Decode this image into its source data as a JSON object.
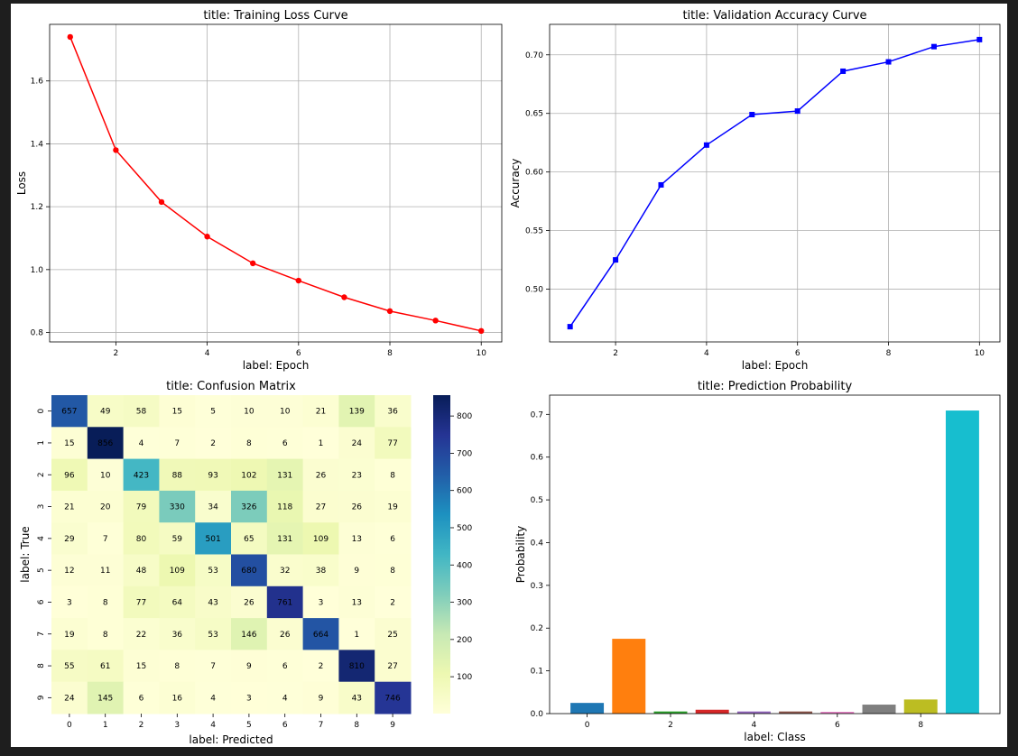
{
  "chart_data": [
    {
      "id": "loss",
      "type": "line",
      "title": "title: Training Loss Curve",
      "xlabel": "label: Epoch",
      "ylabel": "Loss",
      "x": [
        1,
        2,
        3,
        4,
        5,
        6,
        7,
        8,
        9,
        10
      ],
      "series": [
        {
          "values": [
            1.74,
            1.38,
            1.215,
            1.105,
            1.02,
            0.965,
            0.912,
            0.868,
            0.838,
            0.805
          ],
          "color": "#ff0000",
          "marker": "circle"
        }
      ],
      "xlim": [
        0.55,
        10.45
      ],
      "ylim": [
        0.77,
        1.78
      ],
      "xticks": [
        2,
        4,
        6,
        8,
        10
      ],
      "yticks": [
        0.8,
        1.0,
        1.2,
        1.4,
        1.6
      ],
      "ytick_labels": [
        "0.8",
        "1.0",
        "1.2",
        "1.4",
        "1.6"
      ],
      "grid": true
    },
    {
      "id": "acc",
      "type": "line",
      "title": "title: Validation Accuracy Curve",
      "xlabel": "label: Epoch",
      "ylabel": "Accuracy",
      "x": [
        1,
        2,
        3,
        4,
        5,
        6,
        7,
        8,
        9,
        10
      ],
      "series": [
        {
          "values": [
            0.468,
            0.525,
            0.589,
            0.623,
            0.649,
            0.652,
            0.686,
            0.694,
            0.707,
            0.713
          ],
          "color": "#0000ff",
          "marker": "square"
        }
      ],
      "xlim": [
        0.55,
        10.45
      ],
      "ylim": [
        0.455,
        0.726
      ],
      "xticks": [
        2,
        4,
        6,
        8,
        10
      ],
      "yticks": [
        0.5,
        0.55,
        0.6,
        0.65,
        0.7
      ],
      "ytick_labels": [
        "0.50",
        "0.55",
        "0.60",
        "0.65",
        "0.70"
      ],
      "grid": true
    },
    {
      "id": "cm",
      "type": "heatmap",
      "title": "title: Confusion Matrix",
      "xlabel": "label: Predicted",
      "ylabel": "label: True",
      "x_labels": [
        "0",
        "1",
        "2",
        "3",
        "4",
        "5",
        "6",
        "7",
        "8",
        "9"
      ],
      "y_labels": [
        "0",
        "1",
        "2",
        "3",
        "4",
        "5",
        "6",
        "7",
        "8",
        "9"
      ],
      "values": [
        [
          657,
          49,
          58,
          15,
          5,
          10,
          10,
          21,
          139,
          36
        ],
        [
          15,
          856,
          4,
          7,
          2,
          8,
          6,
          1,
          24,
          77
        ],
        [
          96,
          10,
          423,
          88,
          93,
          102,
          131,
          26,
          23,
          8
        ],
        [
          21,
          20,
          79,
          330,
          34,
          326,
          118,
          27,
          26,
          19
        ],
        [
          29,
          7,
          80,
          59,
          501,
          65,
          131,
          109,
          13,
          6
        ],
        [
          12,
          11,
          48,
          109,
          53,
          680,
          32,
          38,
          9,
          8
        ],
        [
          3,
          8,
          77,
          64,
          43,
          26,
          761,
          3,
          13,
          2
        ],
        [
          19,
          8,
          22,
          36,
          53,
          146,
          26,
          664,
          1,
          25
        ],
        [
          55,
          61,
          15,
          8,
          7,
          9,
          6,
          2,
          810,
          27
        ],
        [
          24,
          145,
          6,
          16,
          4,
          3,
          4,
          9,
          43,
          746
        ]
      ],
      "colormap": "YlGnBu",
      "vmin": 1,
      "vmax": 856,
      "colorbar_ticks": [
        100,
        200,
        300,
        400,
        500,
        600,
        700,
        800
      ]
    },
    {
      "id": "prob",
      "type": "bar",
      "title": "title: Prediction Probability",
      "xlabel": "label: Class",
      "ylabel": "Probability",
      "categories": [
        0,
        1,
        2,
        3,
        4,
        5,
        6,
        7,
        8,
        9
      ],
      "values": [
        0.025,
        0.175,
        0.005,
        0.009,
        0.005,
        0.005,
        0.004,
        0.021,
        0.033,
        0.709
      ],
      "colors": [
        "#1f77b4",
        "#ff7f0e",
        "#2ca02c",
        "#d62728",
        "#9467bd",
        "#8c564b",
        "#e377c2",
        "#7f7f7f",
        "#bcbd22",
        "#17becf"
      ],
      "xlim": [
        -0.9,
        9.9
      ],
      "ylim": [
        0,
        0.745
      ],
      "xticks": [
        0,
        2,
        4,
        6,
        8
      ],
      "yticks": [
        0.0,
        0.1,
        0.2,
        0.3,
        0.4,
        0.5,
        0.6,
        0.7
      ],
      "ytick_labels": [
        "0.0",
        "0.1",
        "0.2",
        "0.3",
        "0.4",
        "0.5",
        "0.6",
        "0.7"
      ],
      "grid": false
    }
  ]
}
